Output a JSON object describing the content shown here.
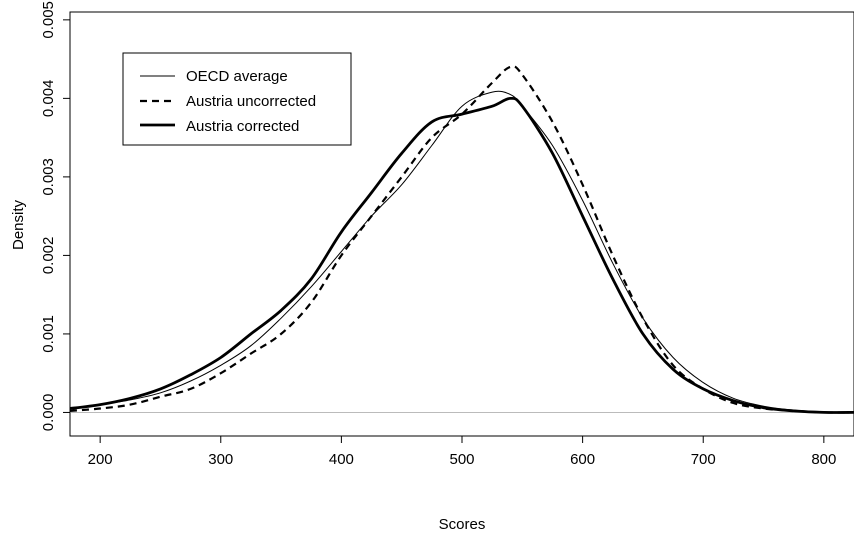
{
  "chart_data": {
    "type": "line",
    "title": "",
    "xlabel": "Scores",
    "ylabel": "Density",
    "xlim": [
      175,
      825
    ],
    "ylim": [
      -0.0003,
      0.0051
    ],
    "x_ticks": [
      200,
      300,
      400,
      500,
      600,
      700,
      800
    ],
    "x_tick_labels": [
      "200",
      "300",
      "400",
      "500",
      "600",
      "700",
      "800"
    ],
    "y_ticks": [
      0,
      0.001,
      0.002,
      0.003,
      0.004,
      0.005
    ],
    "y_tick_labels": [
      "0.000",
      "0.001",
      "0.002",
      "0.003",
      "0.004",
      "0.005"
    ],
    "grid": false,
    "baseline": 0,
    "legend_position": "top-left",
    "series": [
      {
        "name": "OECD average",
        "style": "thin-solid",
        "x": [
          175,
          200,
          225,
          250,
          275,
          300,
          325,
          350,
          375,
          400,
          425,
          450,
          475,
          500,
          525,
          540,
          550,
          575,
          600,
          625,
          650,
          675,
          700,
          725,
          750,
          775,
          800,
          825
        ],
        "y": [
          5e-05,
          0.0001,
          0.00016,
          0.00025,
          0.0004,
          0.0006,
          0.00085,
          0.0012,
          0.0016,
          0.00205,
          0.0025,
          0.0029,
          0.0034,
          0.0039,
          0.00408,
          0.00405,
          0.0039,
          0.0034,
          0.0027,
          0.0019,
          0.0012,
          0.0007,
          0.00038,
          0.00018,
          8e-05,
          3e-05,
          1e-05,
          0.0
        ]
      },
      {
        "name": "Austria uncorrected",
        "style": "dashed",
        "x": [
          175,
          200,
          225,
          250,
          275,
          300,
          325,
          350,
          375,
          400,
          425,
          450,
          475,
          500,
          525,
          540,
          550,
          575,
          600,
          625,
          650,
          675,
          700,
          725,
          750,
          775,
          800,
          825
        ],
        "y": [
          2e-05,
          5e-05,
          0.0001,
          0.0002,
          0.0003,
          0.0005,
          0.00075,
          0.001,
          0.0014,
          0.002,
          0.0025,
          0.003,
          0.0035,
          0.0038,
          0.0042,
          0.0044,
          0.0043,
          0.0037,
          0.0029,
          0.002,
          0.0012,
          0.0006,
          0.0003,
          0.00012,
          5e-05,
          2e-05,
          0.0,
          0.0
        ]
      },
      {
        "name": "Austria corrected",
        "style": "thick-solid",
        "x": [
          175,
          200,
          225,
          250,
          275,
          300,
          325,
          350,
          375,
          400,
          425,
          450,
          475,
          500,
          525,
          540,
          550,
          575,
          600,
          625,
          650,
          675,
          700,
          725,
          750,
          775,
          800,
          825
        ],
        "y": [
          5e-05,
          0.0001,
          0.00018,
          0.0003,
          0.00048,
          0.0007,
          0.001,
          0.0013,
          0.0017,
          0.0023,
          0.0028,
          0.0033,
          0.0037,
          0.0038,
          0.0039,
          0.004,
          0.0039,
          0.0033,
          0.0025,
          0.0017,
          0.001,
          0.00055,
          0.0003,
          0.00015,
          6e-05,
          2e-05,
          0.0,
          0.0
        ]
      }
    ]
  }
}
